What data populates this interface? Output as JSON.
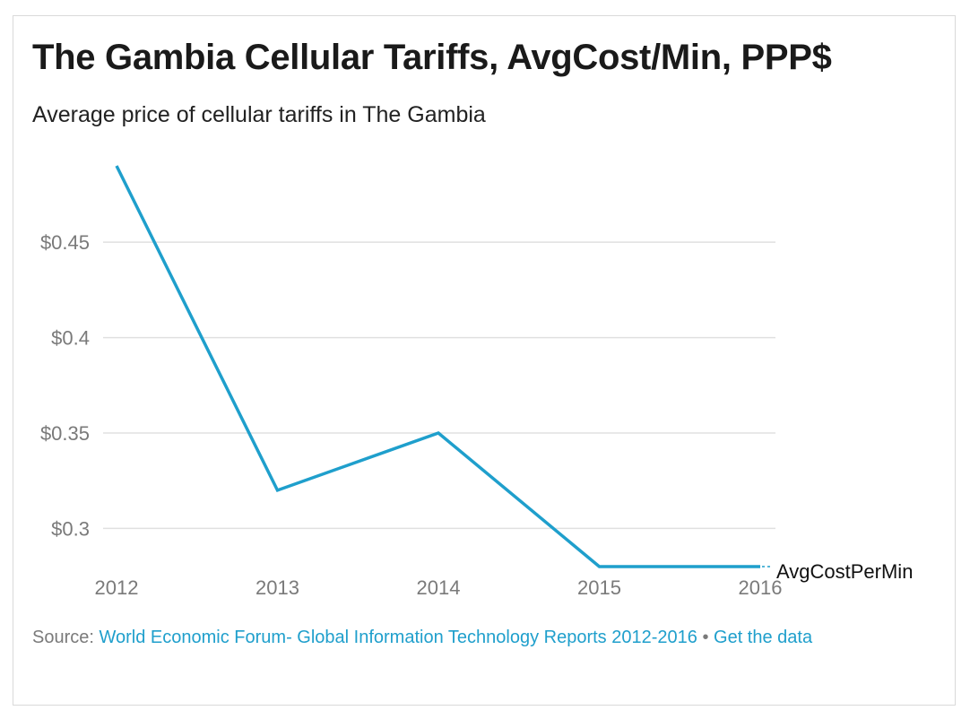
{
  "header": {
    "title": "The Gambia Cellular Tariffs, AvgCost/Min, PPP$",
    "subtitle": "Average price of cellular tariffs in The Gambia"
  },
  "footer": {
    "source_prefix": "Source:",
    "source_link": "World Economic Forum- Global Information Technology Reports 2012-2016",
    "separator": "•",
    "data_link": "Get the data"
  },
  "colors": {
    "series": "#1f9fcc",
    "grid": "#e0e0e0",
    "tick": "#7a7a7a"
  },
  "chart_data": {
    "type": "line",
    "title": "The Gambia Cellular Tariffs, AvgCost/Min, PPP$",
    "subtitle": "Average price of cellular tariffs in The Gambia",
    "xlabel": "",
    "ylabel": "",
    "x": [
      "2012",
      "2013",
      "2014",
      "2015",
      "2016"
    ],
    "series": [
      {
        "name": "AvgCostPerMin",
        "values": [
          0.49,
          0.32,
          0.35,
          0.28,
          0.28
        ]
      }
    ],
    "yticks": [
      0.3,
      0.35,
      0.4,
      0.45
    ],
    "ytick_labels": [
      "$0.3",
      "$0.35",
      "$0.4",
      "$0.45"
    ],
    "ylim": [
      0.28,
      0.49
    ],
    "grid": true,
    "legend": "inline-end-label"
  }
}
